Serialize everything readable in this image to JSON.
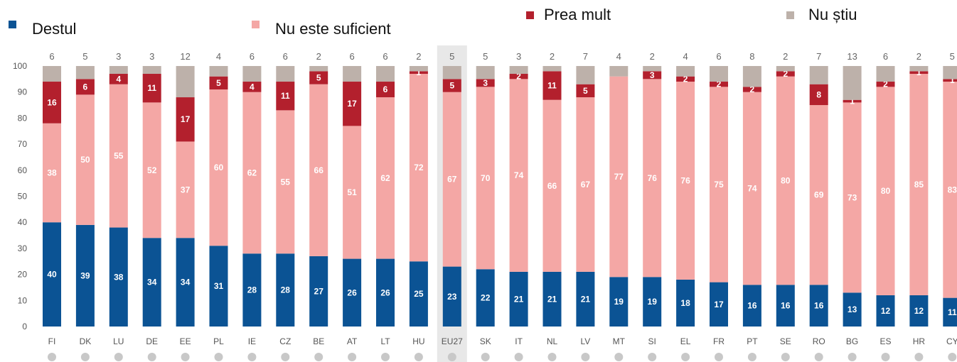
{
  "chart_data": {
    "type": "bar",
    "stacked": true,
    "ylim": [
      0,
      100
    ],
    "yticks": [
      0,
      10,
      20,
      30,
      40,
      50,
      60,
      70,
      80,
      90,
      100
    ],
    "highlight_category": "EU27",
    "categories": [
      "FI",
      "DK",
      "LU",
      "DE",
      "EE",
      "PL",
      "IE",
      "CZ",
      "BE",
      "AT",
      "LT",
      "HU",
      "EU27",
      "SK",
      "IT",
      "NL",
      "LV",
      "MT",
      "SI",
      "EL",
      "FR",
      "PT",
      "SE",
      "RO",
      "BG",
      "ES",
      "HR",
      "CY"
    ],
    "series": [
      {
        "name": "Destul",
        "color": "#0b5394",
        "values": [
          40,
          39,
          38,
          34,
          34,
          31,
          28,
          28,
          27,
          26,
          26,
          25,
          23,
          22,
          21,
          21,
          21,
          19,
          19,
          18,
          17,
          16,
          16,
          16,
          13,
          12,
          12,
          11
        ]
      },
      {
        "name": "Nu este suficient",
        "color": "#f4a7a5",
        "values": [
          38,
          50,
          55,
          52,
          37,
          60,
          62,
          55,
          66,
          51,
          62,
          72,
          67,
          70,
          74,
          66,
          67,
          77,
          76,
          76,
          75,
          74,
          80,
          69,
          73,
          80,
          85,
          83
        ]
      },
      {
        "name": "Prea mult",
        "color": "#b3202d",
        "values": [
          16,
          6,
          4,
          11,
          17,
          5,
          4,
          11,
          5,
          17,
          6,
          1,
          5,
          3,
          2,
          11,
          5,
          0,
          3,
          2,
          2,
          2,
          2,
          8,
          1,
          2,
          1,
          1
        ]
      },
      {
        "name": "Nu știu",
        "color": "#bdb1aa",
        "values": [
          6,
          5,
          3,
          3,
          12,
          4,
          6,
          6,
          2,
          6,
          6,
          2,
          5,
          5,
          3,
          2,
          7,
          4,
          2,
          4,
          6,
          8,
          2,
          7,
          13,
          6,
          2,
          5
        ]
      }
    ]
  }
}
